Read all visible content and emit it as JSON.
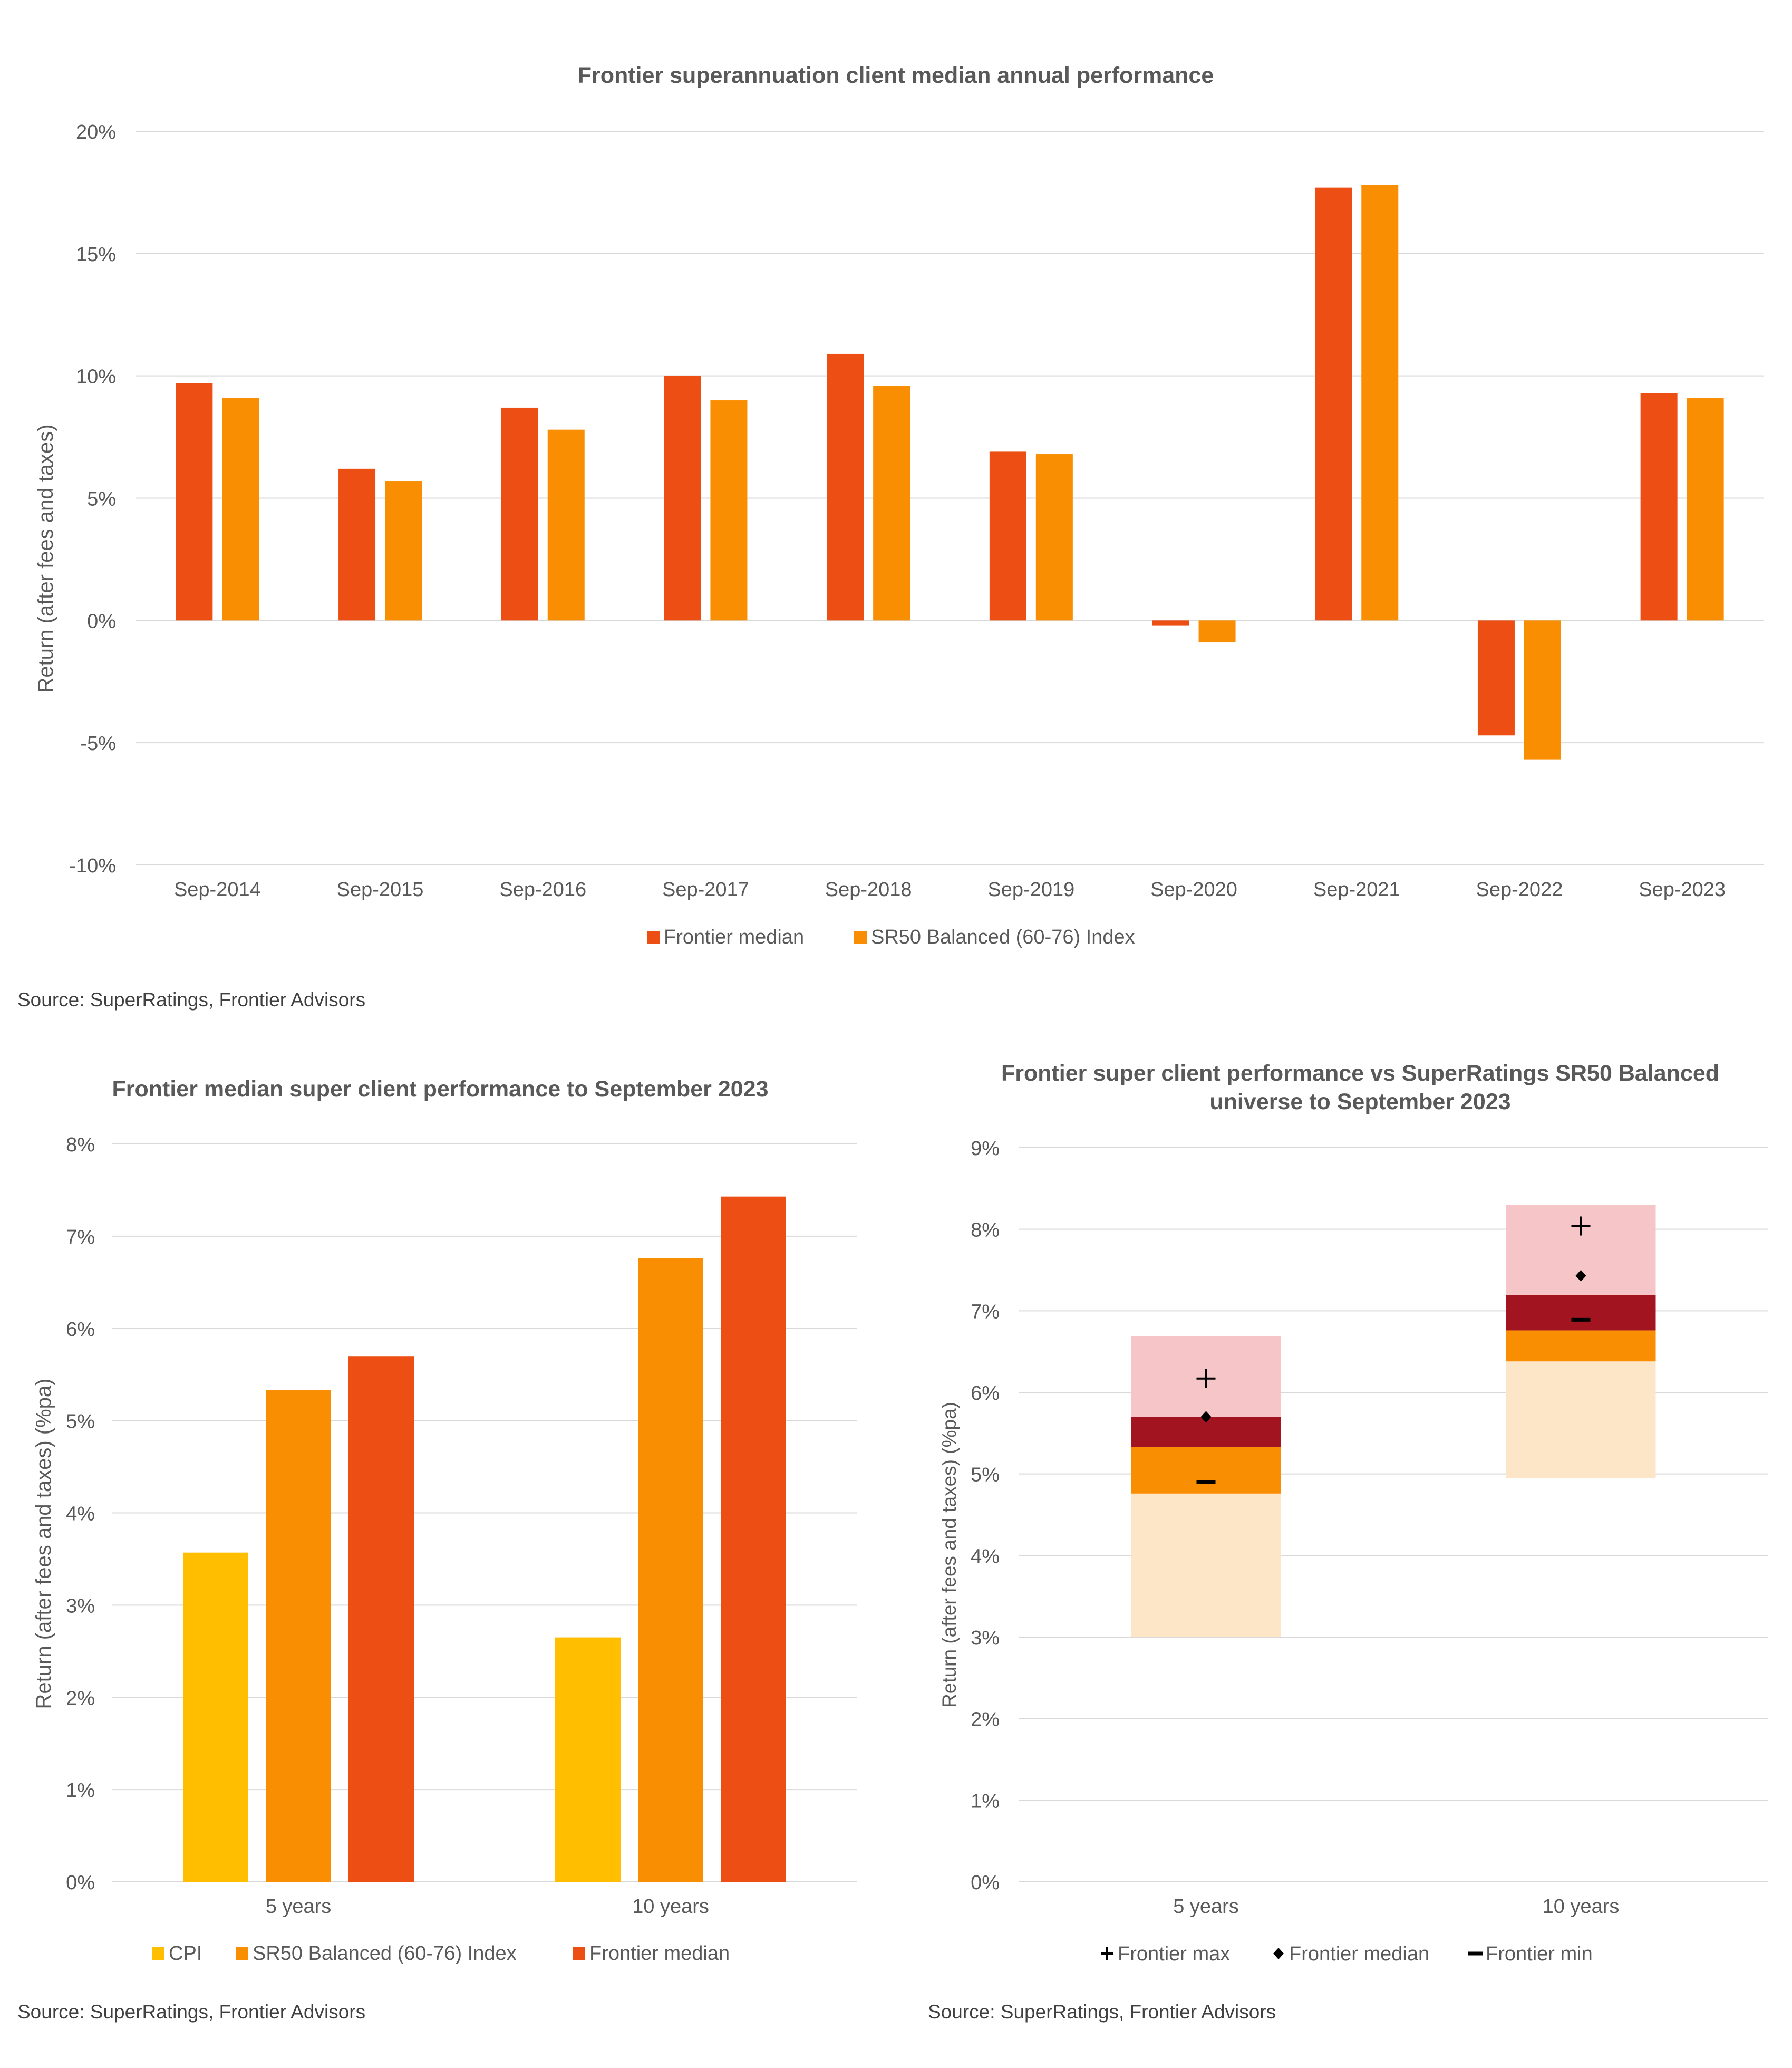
{
  "colors": {
    "frontier_median": "#EC4E14",
    "sr50": "#F98E03",
    "cpi": "#FFBE00",
    "q1": "#FDE6C8",
    "q2": "#F98E03",
    "q3": "#A31421",
    "q4": "#F5C5C8",
    "grid": "#D9D9D9",
    "text": "#595959"
  },
  "chart_data": [
    {
      "type": "bar",
      "title": "Frontier superannuation client median annual performance",
      "ylabel": "Return (after fees and taxes)",
      "ylim": [
        -10,
        20
      ],
      "yticks": [
        "-10%",
        "-5%",
        "0%",
        "5%",
        "10%",
        "15%",
        "20%"
      ],
      "categories": [
        "Sep-2014",
        "Sep-2015",
        "Sep-2016",
        "Sep-2017",
        "Sep-2018",
        "Sep-2019",
        "Sep-2020",
        "Sep-2021",
        "Sep-2022",
        "Sep-2023"
      ],
      "series": [
        {
          "name": "Frontier median",
          "values": [
            9.7,
            6.2,
            8.7,
            10.0,
            10.9,
            6.9,
            -0.2,
            17.7,
            -4.7,
            9.3
          ]
        },
        {
          "name": "SR50 Balanced (60-76) Index",
          "values": [
            9.1,
            5.7,
            7.8,
            9.0,
            9.6,
            6.8,
            -0.9,
            17.8,
            -5.7,
            9.1
          ]
        }
      ],
      "legend": "bottom",
      "source": "Source: SuperRatings, Frontier Advisors"
    },
    {
      "type": "bar",
      "title": "Frontier median super client performance to September 2023",
      "ylabel": "Return (after fees and taxes) (%pa)",
      "ylim": [
        0,
        8
      ],
      "yticks": [
        "0%",
        "1%",
        "2%",
        "3%",
        "4%",
        "5%",
        "6%",
        "7%",
        "8%"
      ],
      "categories": [
        "5 years",
        "10 years"
      ],
      "series": [
        {
          "name": "CPI",
          "values": [
            3.57,
            2.65
          ]
        },
        {
          "name": "SR50 Balanced (60-76) Index",
          "values": [
            5.33,
            6.76
          ]
        },
        {
          "name": "Frontier median",
          "values": [
            5.7,
            7.43
          ]
        }
      ],
      "legend": "bottom",
      "source": "Source: SuperRatings, Frontier Advisors"
    },
    {
      "type": "bar",
      "title": "Frontier super client performance vs SuperRatings SR50 Balanced universe to September 2023",
      "title_lines": [
        "Frontier super client performance vs SuperRatings SR50 Balanced",
        "universe to September 2023"
      ],
      "ylabel": "Return (after fees and taxes) (%pa)",
      "ylim": [
        0,
        9
      ],
      "yticks": [
        "0%",
        "1%",
        "2%",
        "3%",
        "4%",
        "5%",
        "6%",
        "7%",
        "8%",
        "9%"
      ],
      "categories": [
        "5 years",
        "10 years"
      ],
      "ranges": [
        {
          "min": 3.0,
          "q1": 4.76,
          "median": 5.33,
          "q3": 5.7,
          "max": 6.69
        },
        {
          "min": 4.95,
          "q1": 6.38,
          "median": 6.76,
          "q3": 7.19,
          "max": 8.3
        }
      ],
      "series": [
        {
          "name": "Frontier max",
          "values": [
            6.17,
            8.04
          ]
        },
        {
          "name": "Frontier median",
          "values": [
            5.7,
            7.43
          ]
        },
        {
          "name": "Frontier min",
          "values": [
            4.9,
            6.89
          ]
        }
      ],
      "legend": "bottom",
      "source": "Source: SuperRatings, Frontier Advisors"
    }
  ]
}
